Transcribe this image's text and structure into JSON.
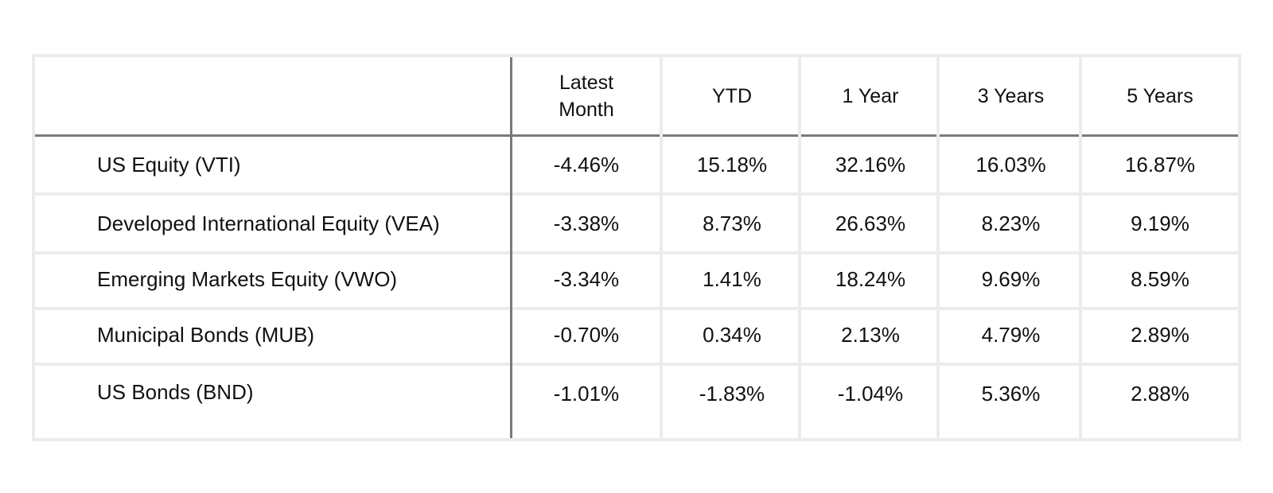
{
  "chart_data": {
    "type": "table",
    "columns": [
      "",
      "Latest Month",
      "YTD",
      "1 Year",
      "3 Years",
      "5 Years"
    ],
    "header_lines": [
      [
        ""
      ],
      [
        "Latest",
        "Month"
      ],
      [
        "YTD"
      ],
      [
        "1 Year"
      ],
      [
        "3 Years"
      ],
      [
        "5 Years"
      ]
    ],
    "rows": [
      {
        "label": "US Equity (VTI)",
        "values": [
          "-4.46%",
          "15.18%",
          "32.16%",
          "16.03%",
          "16.87%"
        ]
      },
      {
        "label": "Developed International Equity (VEA)",
        "values": [
          "-3.38%",
          "8.73%",
          "26.63%",
          "8.23%",
          "9.19%"
        ]
      },
      {
        "label": "Emerging Markets Equity (VWO)",
        "values": [
          "-3.34%",
          "1.41%",
          "18.24%",
          "9.69%",
          "8.59%"
        ]
      },
      {
        "label": "Municipal Bonds (MUB)",
        "values": [
          "-0.70%",
          "0.34%",
          "2.13%",
          "4.79%",
          "2.89%"
        ]
      },
      {
        "label": "US Bonds (BND)",
        "values": [
          "-1.01%",
          "-1.83%",
          "-1.04%",
          "5.36%",
          "2.88%"
        ]
      }
    ]
  },
  "colors": {
    "grid_light": "#ececec",
    "grid_dark": "#7a7a7a",
    "text": "#111111"
  }
}
